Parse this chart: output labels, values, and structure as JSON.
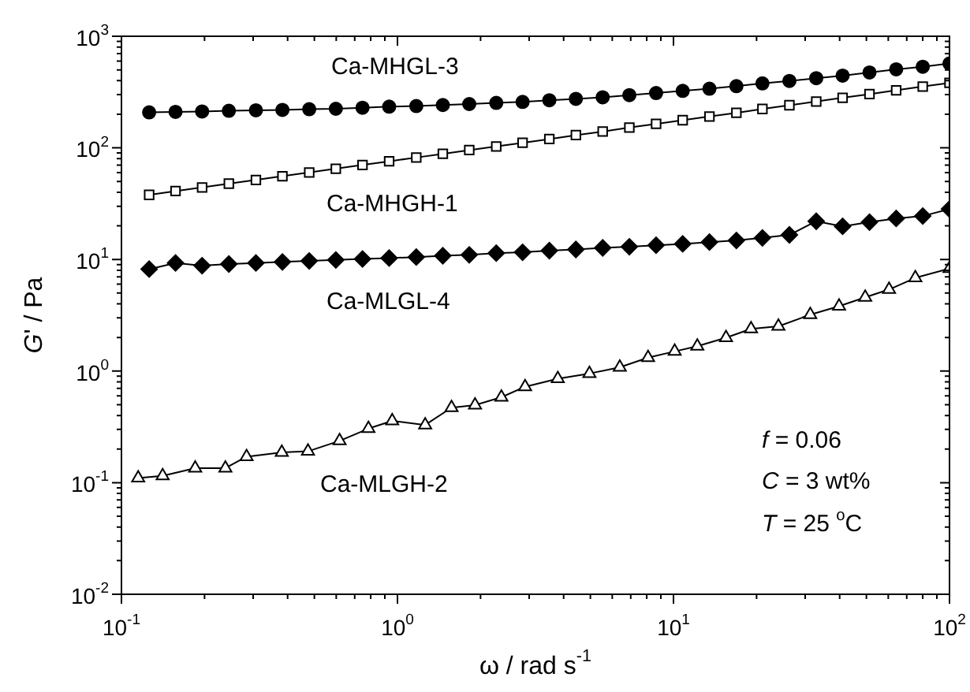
{
  "chart_data": {
    "type": "line",
    "xlabel": "ω / rad s$^{-1}$",
    "ylabel": "G' / Pa",
    "log": "xy",
    "line_style": "solid",
    "xlim": [
      0.1,
      100
    ],
    "ylim": [
      0.01,
      1000
    ],
    "xticks": [
      {
        "value": 0.1,
        "label": "10$^{-1}$"
      },
      {
        "value": 0.2,
        "label": null
      },
      {
        "value": 0.3,
        "label": null
      },
      {
        "value": 0.4,
        "label": null
      },
      {
        "value": 0.5,
        "label": null
      },
      {
        "value": 0.6,
        "label": null
      },
      {
        "value": 0.7,
        "label": null
      },
      {
        "value": 0.8,
        "label": null
      },
      {
        "value": 0.9,
        "label": null
      },
      {
        "value": 1,
        "label": "10$^{0}$"
      },
      {
        "value": 2,
        "label": null
      },
      {
        "value": 3,
        "label": null
      },
      {
        "value": 4,
        "label": null
      },
      {
        "value": 5,
        "label": null
      },
      {
        "value": 6,
        "label": null
      },
      {
        "value": 7,
        "label": null
      },
      {
        "value": 8,
        "label": null
      },
      {
        "value": 9,
        "label": null
      },
      {
        "value": 10,
        "label": "10$^{1}$"
      },
      {
        "value": 20,
        "label": null
      },
      {
        "value": 30,
        "label": null
      },
      {
        "value": 40,
        "label": null
      },
      {
        "value": 50,
        "label": null
      },
      {
        "value": 60,
        "label": null
      },
      {
        "value": 70,
        "label": null
      },
      {
        "value": 80,
        "label": null
      },
      {
        "value": 90,
        "label": null
      },
      {
        "value": 100,
        "label": "10$^{2}$"
      }
    ],
    "yticks": [
      {
        "value": 0.01,
        "label": "10$^{-2}$"
      },
      {
        "value": 0.02,
        "label": null
      },
      {
        "value": 0.03,
        "label": null
      },
      {
        "value": 0.04,
        "label": null
      },
      {
        "value": 0.05,
        "label": null
      },
      {
        "value": 0.06,
        "label": null
      },
      {
        "value": 0.07,
        "label": null
      },
      {
        "value": 0.08,
        "label": null
      },
      {
        "value": 0.09,
        "label": null
      },
      {
        "value": 0.1,
        "label": "10$^{-1}$"
      },
      {
        "value": 0.2,
        "label": null
      },
      {
        "value": 0.3,
        "label": null
      },
      {
        "value": 0.4,
        "label": null
      },
      {
        "value": 0.5,
        "label": null
      },
      {
        "value": 0.6,
        "label": null
      },
      {
        "value": 0.7,
        "label": null
      },
      {
        "value": 0.8,
        "label": null
      },
      {
        "value": 0.9,
        "label": null
      },
      {
        "value": 1,
        "label": "10$^{0}$"
      },
      {
        "value": 2,
        "label": null
      },
      {
        "value": 3,
        "label": null
      },
      {
        "value": 4,
        "label": null
      },
      {
        "value": 5,
        "label": null
      },
      {
        "value": 6,
        "label": null
      },
      {
        "value": 7,
        "label": null
      },
      {
        "value": 8,
        "label": null
      },
      {
        "value": 9,
        "label": null
      },
      {
        "value": 10,
        "label": "10$^{1}$"
      },
      {
        "value": 20,
        "label": null
      },
      {
        "value": 30,
        "label": null
      },
      {
        "value": 40,
        "label": null
      },
      {
        "value": 50,
        "label": null
      },
      {
        "value": 60,
        "label": null
      },
      {
        "value": 70,
        "label": null
      },
      {
        "value": 80,
        "label": null
      },
      {
        "value": 90,
        "label": null
      },
      {
        "value": 100,
        "label": "10$^{2}$"
      },
      {
        "value": 200,
        "label": null
      },
      {
        "value": 300,
        "label": null
      },
      {
        "value": 400,
        "label": null
      },
      {
        "value": 500,
        "label": null
      },
      {
        "value": 600,
        "label": null
      },
      {
        "value": 700,
        "label": null
      },
      {
        "value": 800,
        "label": null
      },
      {
        "value": 900,
        "label": null
      },
      {
        "value": 1000,
        "label": "10$^{3}$"
      }
    ],
    "x": [
      0.126,
      0.157,
      0.196,
      0.245,
      0.307,
      0.383,
      0.479,
      0.598,
      0.747,
      0.933,
      1.17,
      1.46,
      1.82,
      2.28,
      2.84,
      3.55,
      4.43,
      5.54,
      6.92,
      8.65,
      10.8,
      13.5,
      16.9,
      21.0,
      26.3,
      32.9,
      41.0,
      51.3,
      64.1,
      80.0,
      100
    ],
    "series": [
      {
        "name": "Ca-MHGL-3",
        "color": "#000000",
        "marker": "circle",
        "values": [
          208,
          210,
          212,
          215,
          217,
          219,
          222,
          224,
          229,
          234,
          237,
          242,
          247,
          253,
          258,
          267,
          275,
          284,
          297,
          310,
          324,
          339,
          357,
          378,
          398,
          421,
          444,
          474,
          506,
          533,
          570
        ]
      },
      {
        "name": "Ca-MHGH-1",
        "color": "#000000",
        "marker": "square",
        "values": [
          37.9,
          41.0,
          44.2,
          47.8,
          51.6,
          55.7,
          60.2,
          65.0,
          70.2,
          75.8,
          81.9,
          88.4,
          95.5,
          103,
          111,
          120,
          130,
          140,
          152,
          164,
          177,
          191,
          206,
          223,
          241,
          260,
          281,
          303,
          328,
          354,
          382
        ]
      },
      {
        "name": "Ca-MLGL-4",
        "color": "#000000",
        "marker": "diamond",
        "values": [
          8.2,
          9.3,
          8.8,
          9.1,
          9.3,
          9.5,
          9.7,
          9.9,
          10.1,
          10.3,
          10.5,
          10.8,
          11.0,
          11.4,
          11.6,
          12.0,
          12.3,
          12.7,
          13.0,
          13.4,
          13.8,
          14.3,
          14.8,
          15.6,
          16.6,
          22.0,
          19.8,
          21.6,
          23.3,
          24.5,
          28.3
        ]
      },
      {
        "name": "Ca-MLGH-2",
        "color": "#000000",
        "marker": "triangle",
        "x": [
          0.115,
          0.141,
          0.185,
          0.238,
          0.284,
          0.381,
          0.474,
          0.617,
          0.785,
          0.957,
          1.26,
          1.57,
          1.91,
          2.38,
          2.9,
          3.81,
          4.96,
          6.39,
          8.09,
          10.1,
          12.2,
          15.5,
          19.1,
          24.0,
          31.3,
          39.8,
          49.5,
          60.4,
          75.2,
          100
        ],
        "values": [
          0.11,
          0.115,
          0.135,
          0.135,
          0.171,
          0.187,
          0.191,
          0.237,
          0.305,
          0.358,
          0.329,
          0.47,
          0.496,
          0.583,
          0.724,
          0.853,
          0.951,
          1.08,
          1.32,
          1.5,
          1.67,
          1.99,
          2.39,
          2.52,
          3.2,
          3.81,
          4.58,
          5.38,
          6.84,
          8.3
        ]
      }
    ],
    "annotations": [
      "f = 0.06",
      "C = 3 wt%",
      "T = 25 $^{o}$C"
    ]
  }
}
